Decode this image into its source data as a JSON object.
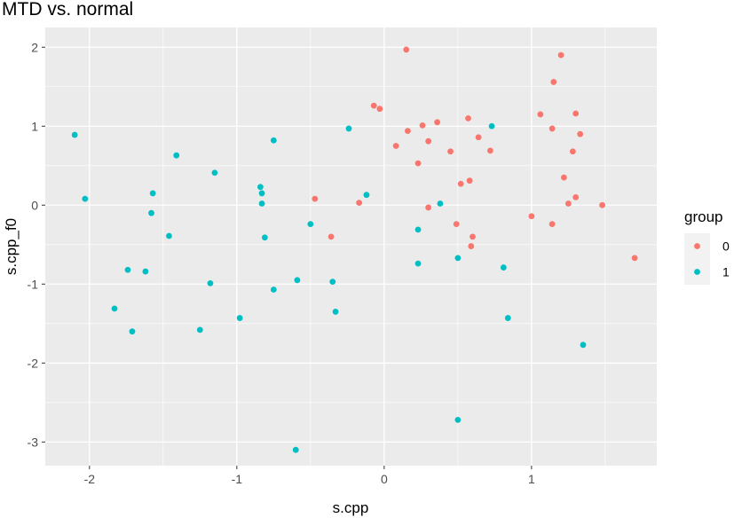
{
  "chart_data": {
    "type": "scatter",
    "title": "MTD vs. normal",
    "xlabel": "s.cpp",
    "ylabel": "s.cpp_f0",
    "xlim": [
      -2.3,
      1.85
    ],
    "ylim": [
      -3.3,
      2.25
    ],
    "xticks": [
      -2,
      -1,
      0,
      1
    ],
    "yticks": [
      -3,
      -2,
      -1,
      0,
      1,
      2
    ],
    "grid": true,
    "legend": {
      "title": "group",
      "position": "right"
    },
    "series": [
      {
        "name": "0",
        "color": "#F8766D",
        "points": [
          [
            0.15,
            1.97
          ],
          [
            1.2,
            1.9
          ],
          [
            1.15,
            1.56
          ],
          [
            -0.07,
            1.26
          ],
          [
            -0.03,
            1.22
          ],
          [
            1.06,
            1.15
          ],
          [
            1.3,
            1.16
          ],
          [
            0.57,
            1.1
          ],
          [
            0.36,
            1.05
          ],
          [
            0.26,
            1.01
          ],
          [
            0.16,
            0.94
          ],
          [
            1.14,
            0.97
          ],
          [
            1.33,
            0.9
          ],
          [
            0.64,
            0.86
          ],
          [
            0.3,
            0.81
          ],
          [
            0.08,
            0.75
          ],
          [
            0.45,
            0.68
          ],
          [
            0.72,
            0.69
          ],
          [
            1.28,
            0.68
          ],
          [
            0.23,
            0.53
          ],
          [
            1.22,
            0.35
          ],
          [
            0.58,
            0.31
          ],
          [
            0.52,
            0.27
          ],
          [
            1.3,
            0.1
          ],
          [
            -0.47,
            0.08
          ],
          [
            -0.17,
            0.03
          ],
          [
            1.25,
            0.02
          ],
          [
            1.48,
            0.0
          ],
          [
            0.3,
            -0.03
          ],
          [
            1.0,
            -0.14
          ],
          [
            1.14,
            -0.24
          ],
          [
            0.49,
            -0.24
          ],
          [
            -0.36,
            -0.4
          ],
          [
            0.6,
            -0.4
          ],
          [
            0.59,
            -0.52
          ],
          [
            1.7,
            -0.67
          ]
        ]
      },
      {
        "name": "1",
        "color": "#00BFC4",
        "points": [
          [
            -2.1,
            0.89
          ],
          [
            0.73,
            1.0
          ],
          [
            -0.24,
            0.97
          ],
          [
            -0.75,
            0.82
          ],
          [
            -1.41,
            0.63
          ],
          [
            -1.15,
            0.41
          ],
          [
            -0.84,
            0.23
          ],
          [
            -1.57,
            0.15
          ],
          [
            -0.83,
            0.15
          ],
          [
            -0.12,
            0.13
          ],
          [
            -2.03,
            0.08
          ],
          [
            -0.83,
            0.02
          ],
          [
            0.38,
            0.02
          ],
          [
            -1.58,
            -0.1
          ],
          [
            -0.5,
            -0.24
          ],
          [
            0.23,
            -0.31
          ],
          [
            -1.46,
            -0.39
          ],
          [
            -0.81,
            -0.41
          ],
          [
            0.5,
            -0.67
          ],
          [
            0.23,
            -0.74
          ],
          [
            -1.74,
            -0.82
          ],
          [
            -1.62,
            -0.84
          ],
          [
            0.81,
            -0.79
          ],
          [
            -0.59,
            -0.95
          ],
          [
            -0.35,
            -0.97
          ],
          [
            -1.18,
            -0.99
          ],
          [
            -0.75,
            -1.07
          ],
          [
            -1.83,
            -1.31
          ],
          [
            -0.33,
            -1.35
          ],
          [
            -0.98,
            -1.43
          ],
          [
            0.84,
            -1.43
          ],
          [
            -1.25,
            -1.58
          ],
          [
            -1.71,
            -1.6
          ],
          [
            1.35,
            -1.77
          ],
          [
            0.5,
            -2.72
          ],
          [
            -0.6,
            -3.1
          ]
        ]
      }
    ]
  }
}
